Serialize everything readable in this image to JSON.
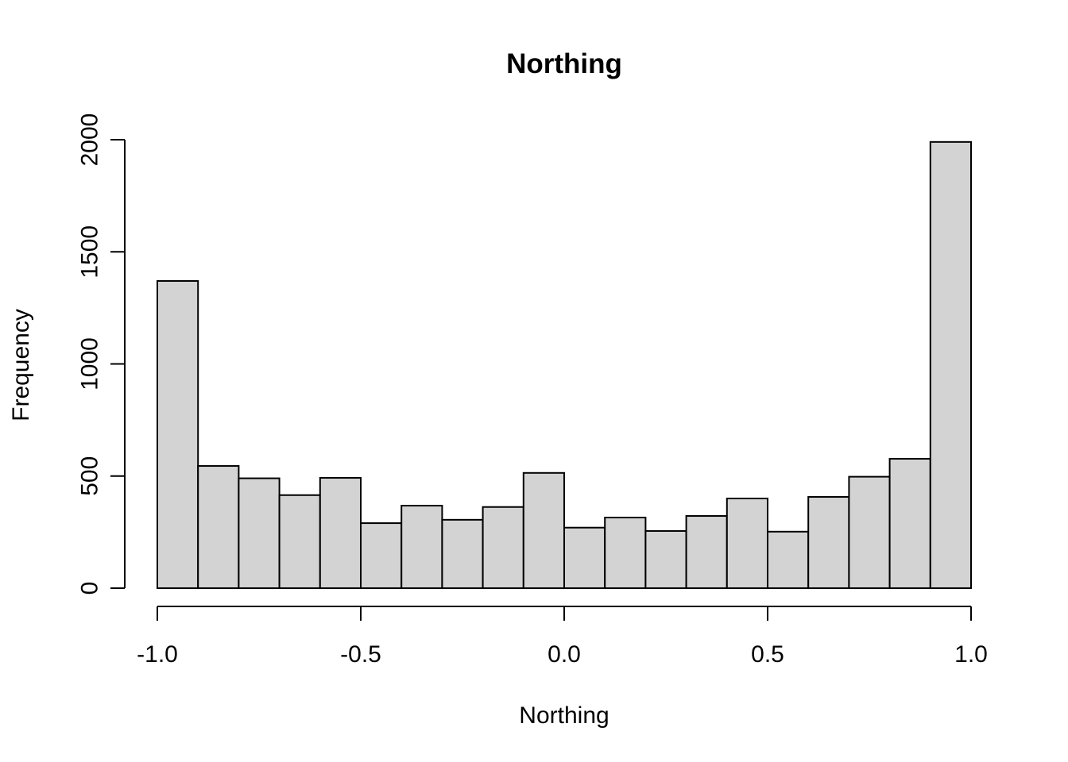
{
  "chart_data": {
    "type": "bar",
    "title": "Northing",
    "xlabel": "Northing",
    "ylabel": "Frequency",
    "bins": [
      {
        "x0": -1.0,
        "x1": -0.9,
        "count": 1370
      },
      {
        "x0": -0.9,
        "x1": -0.8,
        "count": 545
      },
      {
        "x0": -0.8,
        "x1": -0.7,
        "count": 490
      },
      {
        "x0": -0.7,
        "x1": -0.6,
        "count": 415
      },
      {
        "x0": -0.6,
        "x1": -0.5,
        "count": 492
      },
      {
        "x0": -0.5,
        "x1": -0.4,
        "count": 290
      },
      {
        "x0": -0.4,
        "x1": -0.3,
        "count": 368
      },
      {
        "x0": -0.3,
        "x1": -0.2,
        "count": 305
      },
      {
        "x0": -0.2,
        "x1": -0.1,
        "count": 362
      },
      {
        "x0": -0.1,
        "x1": 0.0,
        "count": 514
      },
      {
        "x0": 0.0,
        "x1": 0.1,
        "count": 270
      },
      {
        "x0": 0.1,
        "x1": 0.2,
        "count": 315
      },
      {
        "x0": 0.2,
        "x1": 0.3,
        "count": 255
      },
      {
        "x0": 0.3,
        "x1": 0.4,
        "count": 322
      },
      {
        "x0": 0.4,
        "x1": 0.5,
        "count": 400
      },
      {
        "x0": 0.5,
        "x1": 0.6,
        "count": 252
      },
      {
        "x0": 0.6,
        "x1": 0.7,
        "count": 407
      },
      {
        "x0": 0.7,
        "x1": 0.8,
        "count": 497
      },
      {
        "x0": 0.8,
        "x1": 0.9,
        "count": 577
      },
      {
        "x0": 0.9,
        "x1": 1.0,
        "count": 1990
      }
    ],
    "xticks": [
      -1.0,
      -0.5,
      0.0,
      0.5,
      1.0
    ],
    "xtick_labels": [
      "-1.0",
      "-0.5",
      "0.0",
      "0.5",
      "1.0"
    ],
    "yticks": [
      0,
      500,
      1000,
      1500,
      2000
    ],
    "ytick_labels": [
      "0",
      "500",
      "1000",
      "1500",
      "2000"
    ],
    "xlim": [
      -1.0,
      1.0
    ],
    "ylim": [
      0,
      2000
    ],
    "grid": false,
    "legend": "none",
    "bar_color": "#d3d3d3",
    "edge_color": "#000000"
  }
}
